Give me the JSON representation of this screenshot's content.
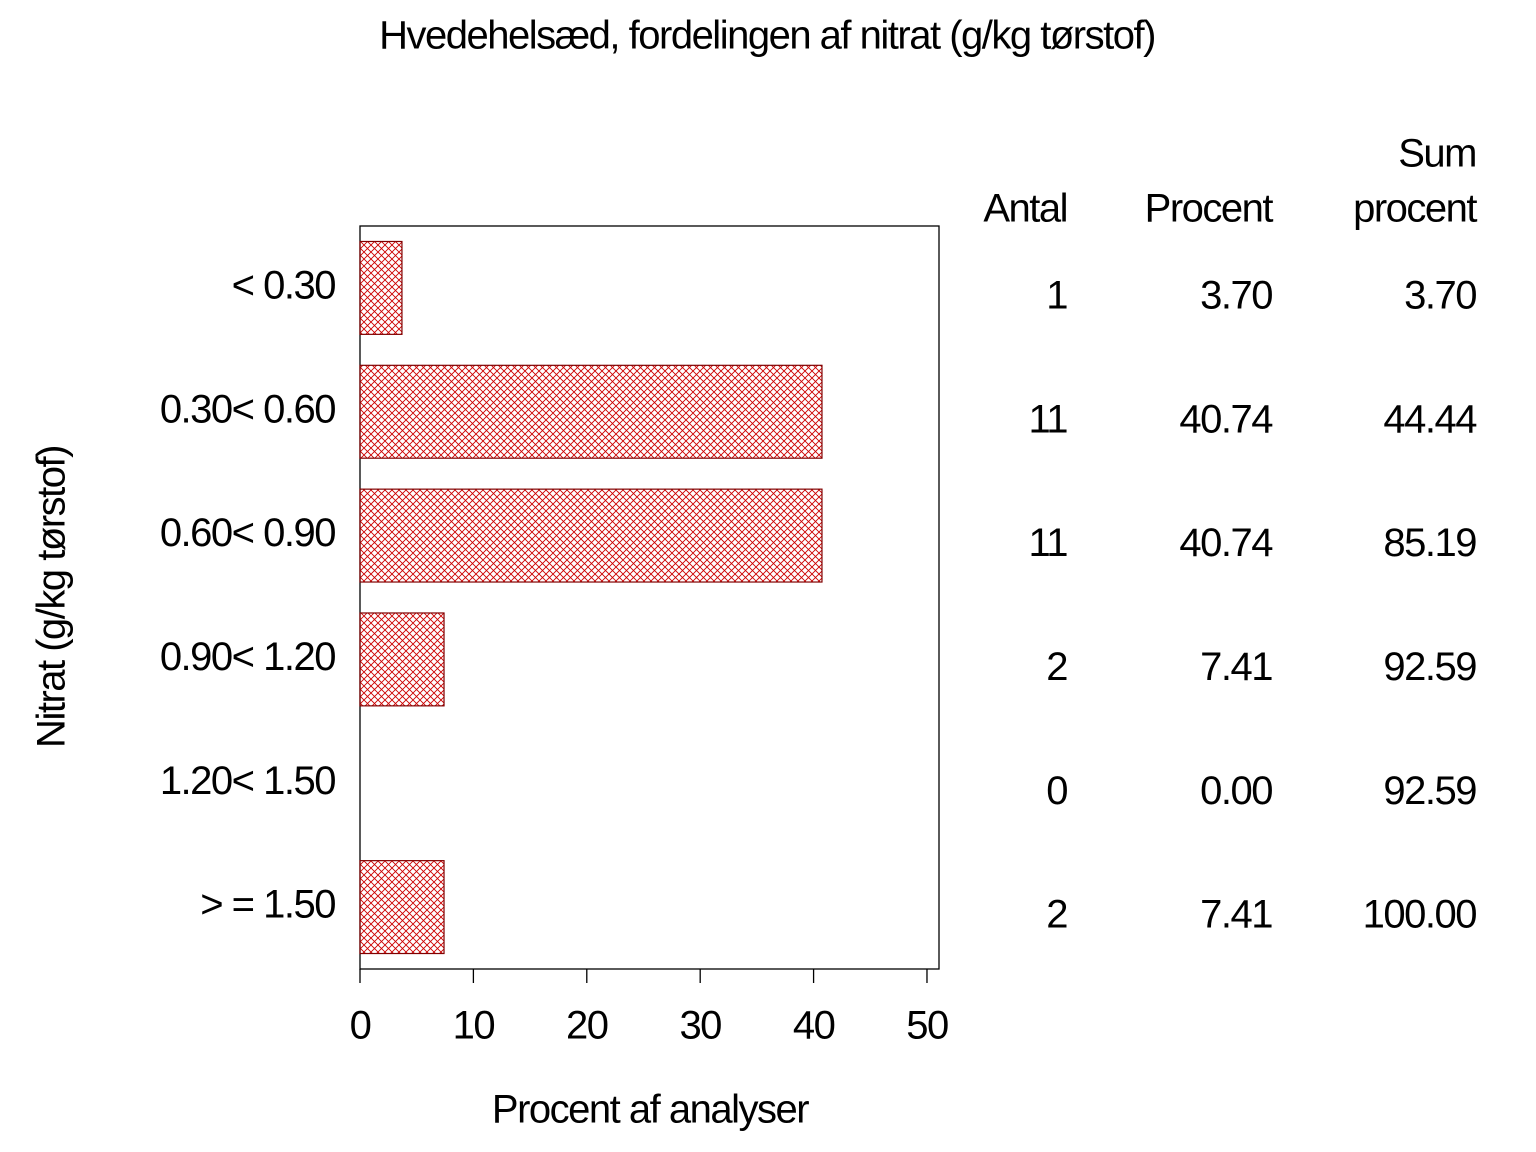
{
  "chart_data": {
    "type": "bar",
    "orientation": "horizontal",
    "title": "Hvedehelsæd, fordelingen af nitrat (g/kg tørstof)",
    "y_label": "Nitrat (g/kg tørstof)",
    "x_label": "Procent af analyser",
    "categories": [
      "< 0.30",
      "0.30< 0.60",
      "0.60< 0.90",
      "0.90< 1.20",
      "1.20< 1.50",
      "> = 1.50"
    ],
    "values": [
      3.7,
      40.74,
      40.74,
      7.41,
      0,
      7.41
    ],
    "color": "#cc0000",
    "xlim": [
      0,
      51.06
    ],
    "xticks": [
      0,
      10,
      20,
      30,
      40,
      50
    ],
    "table": {
      "columns": [
        {
          "header": [
            "Antal"
          ],
          "cells": [
            "1",
            "11",
            "11",
            "2",
            "0",
            "2"
          ]
        },
        {
          "header": [
            "Procent"
          ],
          "cells": [
            "3.70",
            "40.74",
            "40.74",
            "7.41",
            "0.00",
            "7.41"
          ]
        },
        {
          "header": [
            "Sum",
            "procent"
          ],
          "cells": [
            "3.70",
            "44.44",
            "85.19",
            "92.59",
            "92.59",
            "100.00"
          ]
        }
      ]
    }
  }
}
